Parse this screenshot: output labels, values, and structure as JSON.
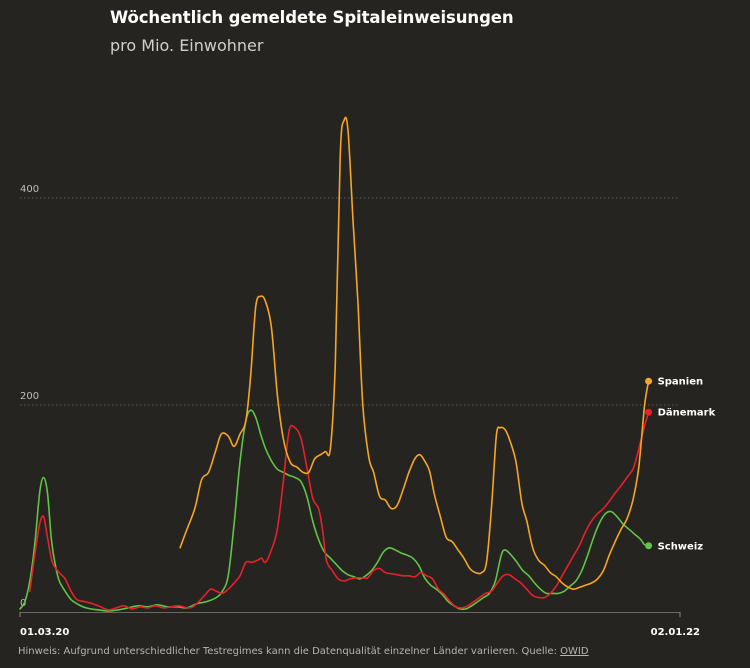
{
  "header": {
    "title": "Wöchentlich gemeldete Spitaleinweisungen",
    "subtitle": "pro Mio. Einwohner"
  },
  "footer": {
    "note": "Hinweis: Aufgrund unterschiedlicher Testregimes kann die Datenqualität einzelner Länder variieren. Quelle:",
    "source_link": "OWID"
  },
  "chart_data": {
    "type": "line",
    "title": "Wöchentlich gemeldete Spitaleinweisungen",
    "subtitle": "pro Mio. Einwohner",
    "xlabel": "",
    "ylabel": "",
    "ylim": [
      0,
      480
    ],
    "xlim": [
      0,
      672
    ],
    "y_ticks": [
      0,
      200,
      400
    ],
    "x_tick_labels": [
      "01.03.20",
      "02.01.22"
    ],
    "grid": "horizontal-dotted",
    "legend": "end-of-line labels",
    "series": [
      {
        "name": "Spanien",
        "color": "#f5a623",
        "points": [
          [
            163,
            62
          ],
          [
            170,
            80
          ],
          [
            178,
            100
          ],
          [
            185,
            128
          ],
          [
            192,
            135
          ],
          [
            199,
            155
          ],
          [
            205,
            172
          ],
          [
            212,
            170
          ],
          [
            218,
            160
          ],
          [
            224,
            172
          ],
          [
            230,
            185
          ],
          [
            235,
            230
          ],
          [
            240,
            295
          ],
          [
            245,
            305
          ],
          [
            250,
            300
          ],
          [
            256,
            275
          ],
          [
            262,
            210
          ],
          [
            268,
            168
          ],
          [
            275,
            145
          ],
          [
            282,
            140
          ],
          [
            288,
            135
          ],
          [
            294,
            135
          ],
          [
            300,
            148
          ],
          [
            306,
            152
          ],
          [
            311,
            155
          ],
          [
            316,
            158
          ],
          [
            321,
            240
          ],
          [
            326,
            440
          ],
          [
            330,
            475
          ],
          [
            334,
            465
          ],
          [
            339,
            380
          ],
          [
            344,
            300
          ],
          [
            349,
            200
          ],
          [
            355,
            150
          ],
          [
            360,
            135
          ],
          [
            366,
            112
          ],
          [
            372,
            108
          ],
          [
            378,
            100
          ],
          [
            384,
            103
          ],
          [
            390,
            118
          ],
          [
            396,
            135
          ],
          [
            402,
            148
          ],
          [
            407,
            152
          ],
          [
            412,
            146
          ],
          [
            417,
            136
          ],
          [
            422,
            113
          ],
          [
            428,
            92
          ],
          [
            434,
            72
          ],
          [
            440,
            68
          ],
          [
            446,
            60
          ],
          [
            452,
            52
          ],
          [
            458,
            42
          ],
          [
            464,
            38
          ],
          [
            470,
            38
          ],
          [
            475,
            48
          ],
          [
            480,
            100
          ],
          [
            485,
            170
          ],
          [
            489,
            178
          ],
          [
            494,
            176
          ],
          [
            499,
            165
          ],
          [
            505,
            145
          ],
          [
            511,
            105
          ],
          [
            516,
            88
          ],
          [
            522,
            62
          ],
          [
            528,
            50
          ],
          [
            534,
            45
          ],
          [
            540,
            38
          ],
          [
            546,
            34
          ],
          [
            552,
            28
          ],
          [
            558,
            24
          ],
          [
            564,
            22
          ],
          [
            570,
            24
          ],
          [
            576,
            26
          ],
          [
            582,
            28
          ],
          [
            588,
            32
          ],
          [
            594,
            40
          ],
          [
            600,
            55
          ],
          [
            606,
            68
          ],
          [
            612,
            80
          ],
          [
            618,
            90
          ],
          [
            624,
            108
          ],
          [
            630,
            140
          ],
          [
            636,
            200
          ],
          [
            640,
            223
          ]
        ]
      },
      {
        "name": "Dänemark",
        "color": "#e8202a",
        "points": [
          [
            10,
            20
          ],
          [
            15,
            55
          ],
          [
            20,
            85
          ],
          [
            24,
            92
          ],
          [
            28,
            72
          ],
          [
            33,
            48
          ],
          [
            40,
            38
          ],
          [
            46,
            32
          ],
          [
            52,
            20
          ],
          [
            58,
            12
          ],
          [
            66,
            10
          ],
          [
            74,
            8
          ],
          [
            82,
            5
          ],
          [
            90,
            2
          ],
          [
            98,
            4
          ],
          [
            106,
            6
          ],
          [
            114,
            3
          ],
          [
            122,
            5
          ],
          [
            130,
            4
          ],
          [
            138,
            6
          ],
          [
            146,
            4
          ],
          [
            154,
            5
          ],
          [
            162,
            6
          ],
          [
            170,
            4
          ],
          [
            176,
            5
          ],
          [
            182,
            10
          ],
          [
            188,
            16
          ],
          [
            194,
            22
          ],
          [
            200,
            20
          ],
          [
            206,
            18
          ],
          [
            212,
            22
          ],
          [
            218,
            28
          ],
          [
            224,
            35
          ],
          [
            230,
            48
          ],
          [
            236,
            48
          ],
          [
            242,
            50
          ],
          [
            246,
            52
          ],
          [
            250,
            48
          ],
          [
            256,
            60
          ],
          [
            262,
            80
          ],
          [
            268,
            125
          ],
          [
            274,
            175
          ],
          [
            280,
            178
          ],
          [
            286,
            168
          ],
          [
            292,
            140
          ],
          [
            298,
            110
          ],
          [
            304,
            100
          ],
          [
            308,
            80
          ],
          [
            312,
            50
          ],
          [
            318,
            40
          ],
          [
            324,
            32
          ],
          [
            330,
            30
          ],
          [
            336,
            32
          ],
          [
            342,
            33
          ],
          [
            348,
            33
          ],
          [
            354,
            33
          ],
          [
            360,
            40
          ],
          [
            366,
            42
          ],
          [
            372,
            38
          ],
          [
            378,
            37
          ],
          [
            384,
            36
          ],
          [
            390,
            35
          ],
          [
            396,
            35
          ],
          [
            402,
            34
          ],
          [
            408,
            38
          ],
          [
            414,
            35
          ],
          [
            420,
            32
          ],
          [
            426,
            22
          ],
          [
            432,
            17
          ],
          [
            438,
            10
          ],
          [
            444,
            5
          ],
          [
            450,
            4
          ],
          [
            456,
            6
          ],
          [
            462,
            10
          ],
          [
            468,
            14
          ],
          [
            474,
            18
          ],
          [
            480,
            20
          ],
          [
            486,
            28
          ],
          [
            492,
            35
          ],
          [
            498,
            36
          ],
          [
            504,
            32
          ],
          [
            510,
            28
          ],
          [
            516,
            22
          ],
          [
            522,
            16
          ],
          [
            528,
            14
          ],
          [
            534,
            14
          ],
          [
            540,
            18
          ],
          [
            546,
            25
          ],
          [
            552,
            35
          ],
          [
            558,
            45
          ],
          [
            564,
            55
          ],
          [
            570,
            65
          ],
          [
            576,
            78
          ],
          [
            582,
            88
          ],
          [
            588,
            95
          ],
          [
            594,
            100
          ],
          [
            600,
            107
          ],
          [
            606,
            115
          ],
          [
            612,
            122
          ],
          [
            618,
            130
          ],
          [
            624,
            138
          ],
          [
            628,
            150
          ],
          [
            632,
            165
          ],
          [
            636,
            180
          ],
          [
            640,
            193
          ]
        ]
      },
      {
        "name": "Schweiz",
        "color": "#5ec545",
        "points": [
          [
            0,
            3
          ],
          [
            5,
            10
          ],
          [
            10,
            30
          ],
          [
            15,
            65
          ],
          [
            20,
            115
          ],
          [
            24,
            130
          ],
          [
            28,
            115
          ],
          [
            32,
            70
          ],
          [
            36,
            45
          ],
          [
            40,
            30
          ],
          [
            46,
            20
          ],
          [
            52,
            12
          ],
          [
            58,
            8
          ],
          [
            64,
            5
          ],
          [
            72,
            3
          ],
          [
            80,
            2
          ],
          [
            90,
            1
          ],
          [
            100,
            2
          ],
          [
            110,
            4
          ],
          [
            120,
            6
          ],
          [
            130,
            5
          ],
          [
            140,
            7
          ],
          [
            150,
            5
          ],
          [
            160,
            5
          ],
          [
            170,
            4
          ],
          [
            180,
            8
          ],
          [
            190,
            10
          ],
          [
            200,
            14
          ],
          [
            206,
            20
          ],
          [
            212,
            35
          ],
          [
            218,
            85
          ],
          [
            224,
            145
          ],
          [
            230,
            185
          ],
          [
            235,
            195
          ],
          [
            240,
            188
          ],
          [
            245,
            172
          ],
          [
            250,
            158
          ],
          [
            256,
            146
          ],
          [
            262,
            138
          ],
          [
            268,
            135
          ],
          [
            274,
            132
          ],
          [
            280,
            130
          ],
          [
            286,
            126
          ],
          [
            292,
            112
          ],
          [
            298,
            88
          ],
          [
            304,
            70
          ],
          [
            310,
            58
          ],
          [
            316,
            52
          ],
          [
            322,
            46
          ],
          [
            328,
            40
          ],
          [
            334,
            36
          ],
          [
            340,
            34
          ],
          [
            346,
            32
          ],
          [
            352,
            35
          ],
          [
            358,
            40
          ],
          [
            364,
            48
          ],
          [
            370,
            58
          ],
          [
            376,
            62
          ],
          [
            382,
            60
          ],
          [
            388,
            57
          ],
          [
            394,
            55
          ],
          [
            400,
            52
          ],
          [
            406,
            45
          ],
          [
            412,
            33
          ],
          [
            418,
            26
          ],
          [
            424,
            22
          ],
          [
            430,
            17
          ],
          [
            436,
            10
          ],
          [
            442,
            6
          ],
          [
            448,
            3
          ],
          [
            454,
            3
          ],
          [
            460,
            6
          ],
          [
            466,
            10
          ],
          [
            472,
            14
          ],
          [
            478,
            18
          ],
          [
            484,
            30
          ],
          [
            490,
            55
          ],
          [
            494,
            60
          ],
          [
            500,
            55
          ],
          [
            506,
            48
          ],
          [
            512,
            40
          ],
          [
            518,
            35
          ],
          [
            524,
            28
          ],
          [
            530,
            22
          ],
          [
            536,
            18
          ],
          [
            542,
            18
          ],
          [
            548,
            18
          ],
          [
            554,
            20
          ],
          [
            560,
            25
          ],
          [
            566,
            30
          ],
          [
            572,
            40
          ],
          [
            578,
            55
          ],
          [
            584,
            72
          ],
          [
            590,
            86
          ],
          [
            596,
            95
          ],
          [
            602,
            97
          ],
          [
            608,
            92
          ],
          [
            614,
            85
          ],
          [
            620,
            80
          ],
          [
            626,
            75
          ],
          [
            632,
            70
          ],
          [
            636,
            65
          ],
          [
            640,
            64
          ]
        ]
      }
    ]
  }
}
